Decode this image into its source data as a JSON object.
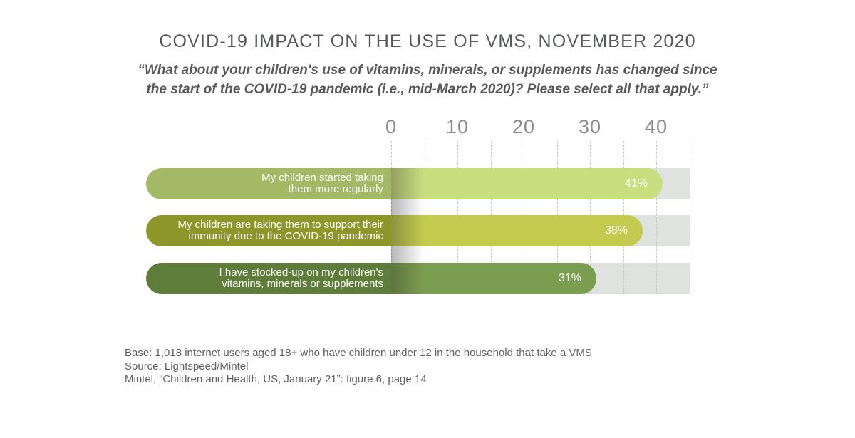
{
  "title": "COVID-19 IMPACT ON THE USE OF VMS, NOVEMBER 2020",
  "subtitle_lines": [
    "“What about your children's use of vitamins, minerals, or supplements has changed since",
    "the start of the COVID-19 pandemic (i.e., mid-March 2020)? Please select all that apply.”"
  ],
  "chart_data": {
    "type": "bar",
    "orientation": "horizontal",
    "title": "COVID-19 IMPACT ON THE USE OF VMS, NOVEMBER 2020",
    "categories": [
      "My children started taking them more regularly",
      "My children are taking them to support their immunity due to the COVID-19 pandemic",
      "I have stocked-up on my children's vitamins, minerals or supplements"
    ],
    "category_lines": [
      [
        "My children started taking",
        "them more regularly"
      ],
      [
        "My children are taking them to support their",
        "immunity due to the COVID-19 pandemic"
      ],
      [
        "I have stocked-up on my children's",
        "vitamins, minerals or supplements"
      ]
    ],
    "values": [
      41,
      38,
      31
    ],
    "value_labels": [
      "41%",
      "38%",
      "31%"
    ],
    "unit": "%",
    "xlim": [
      0,
      45
    ],
    "x_ticks": [
      0,
      10,
      20,
      30,
      40
    ],
    "grid": true,
    "grid_step": 5,
    "legend": false,
    "colors": {
      "bars": [
        {
          "label_bg": "#a4b966",
          "fill": "#c9de7f"
        },
        {
          "label_bg": "#8d9729",
          "fill": "#c3ca4e"
        },
        {
          "label_bg": "#5e7d3a",
          "fill": "#7b9d50"
        }
      ],
      "track": "#dfe2de",
      "gridline": "#c6c8c5",
      "value_text": "#ffffff",
      "tick_text": "#8a8c8e"
    }
  },
  "footer": {
    "lines": [
      "Base: 1,018 internet users aged 18+ who have children under 12 in the household that take a VMS",
      "Source: Lightspeed/Mintel",
      "Mintel, “Children and Health, US, January 21”: figure 6, page 14"
    ]
  }
}
